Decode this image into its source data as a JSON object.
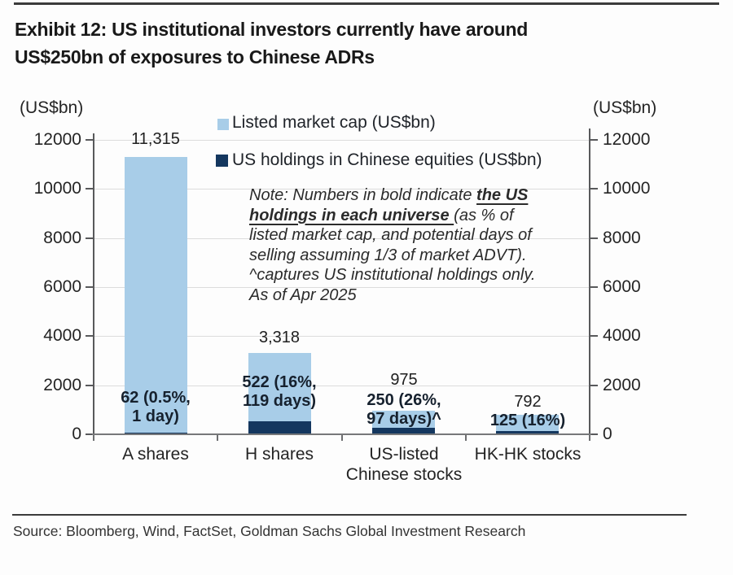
{
  "header": {
    "title": "Exhibit 12: US institutional investors currently have around\nUS$250bn of exposures to Chinese ADRs"
  },
  "legend": [
    {
      "label": "Listed market cap (US$bn)",
      "color": "#A8CDE8"
    },
    {
      "label": "US holdings in Chinese equities (US$bn)",
      "color": "#14375F"
    }
  ],
  "note": {
    "prefix": "Note: Numbers in bold indicate ",
    "underlined": "the US\nholdings in each universe ",
    "rest": "(as % of\nlisted market cap, and potential days of\nselling assuming 1/3 of market ADVT).\n^captures US institutional holdings only.\nAs of Apr 2025"
  },
  "axes": {
    "left_unit": "(US$bn)",
    "right_unit": "(US$bn)",
    "ticks": [
      "12000",
      "10000",
      "8000",
      "6000",
      "4000",
      "2000",
      "0"
    ]
  },
  "chart_data": {
    "type": "bar",
    "title": "US institutional investors exposure to Chinese equities",
    "categories": [
      "A shares",
      "H shares",
      "US-listed\nChinese stocks",
      "HK-HK stocks"
    ],
    "series": [
      {
        "name": "Listed market cap (US$bn)",
        "color": "#A8CDE8",
        "values": [
          11315,
          3318,
          975,
          792
        ]
      },
      {
        "name": "US holdings in Chinese equities (US$bn)",
        "color": "#14375F",
        "values": [
          62,
          522,
          250,
          125
        ]
      }
    ],
    "market_cap_labels": [
      "11,315",
      "3,318",
      "975",
      "792"
    ],
    "holdings_labels": [
      "62 (0.5%,\n1 day)",
      "522 (16%,\n119 days)",
      "250 (26%,\n97 days)^",
      "125 (16%)"
    ],
    "ylabel_left": "(US$bn)",
    "ylabel_right": "(US$bn)",
    "ylim": [
      0,
      12000
    ],
    "ytick_step": 2000,
    "grid": true,
    "legend_position": "top-center"
  },
  "source": "Source: Bloomberg, Wind, FactSet, Goldman Sachs Global Investment Research"
}
